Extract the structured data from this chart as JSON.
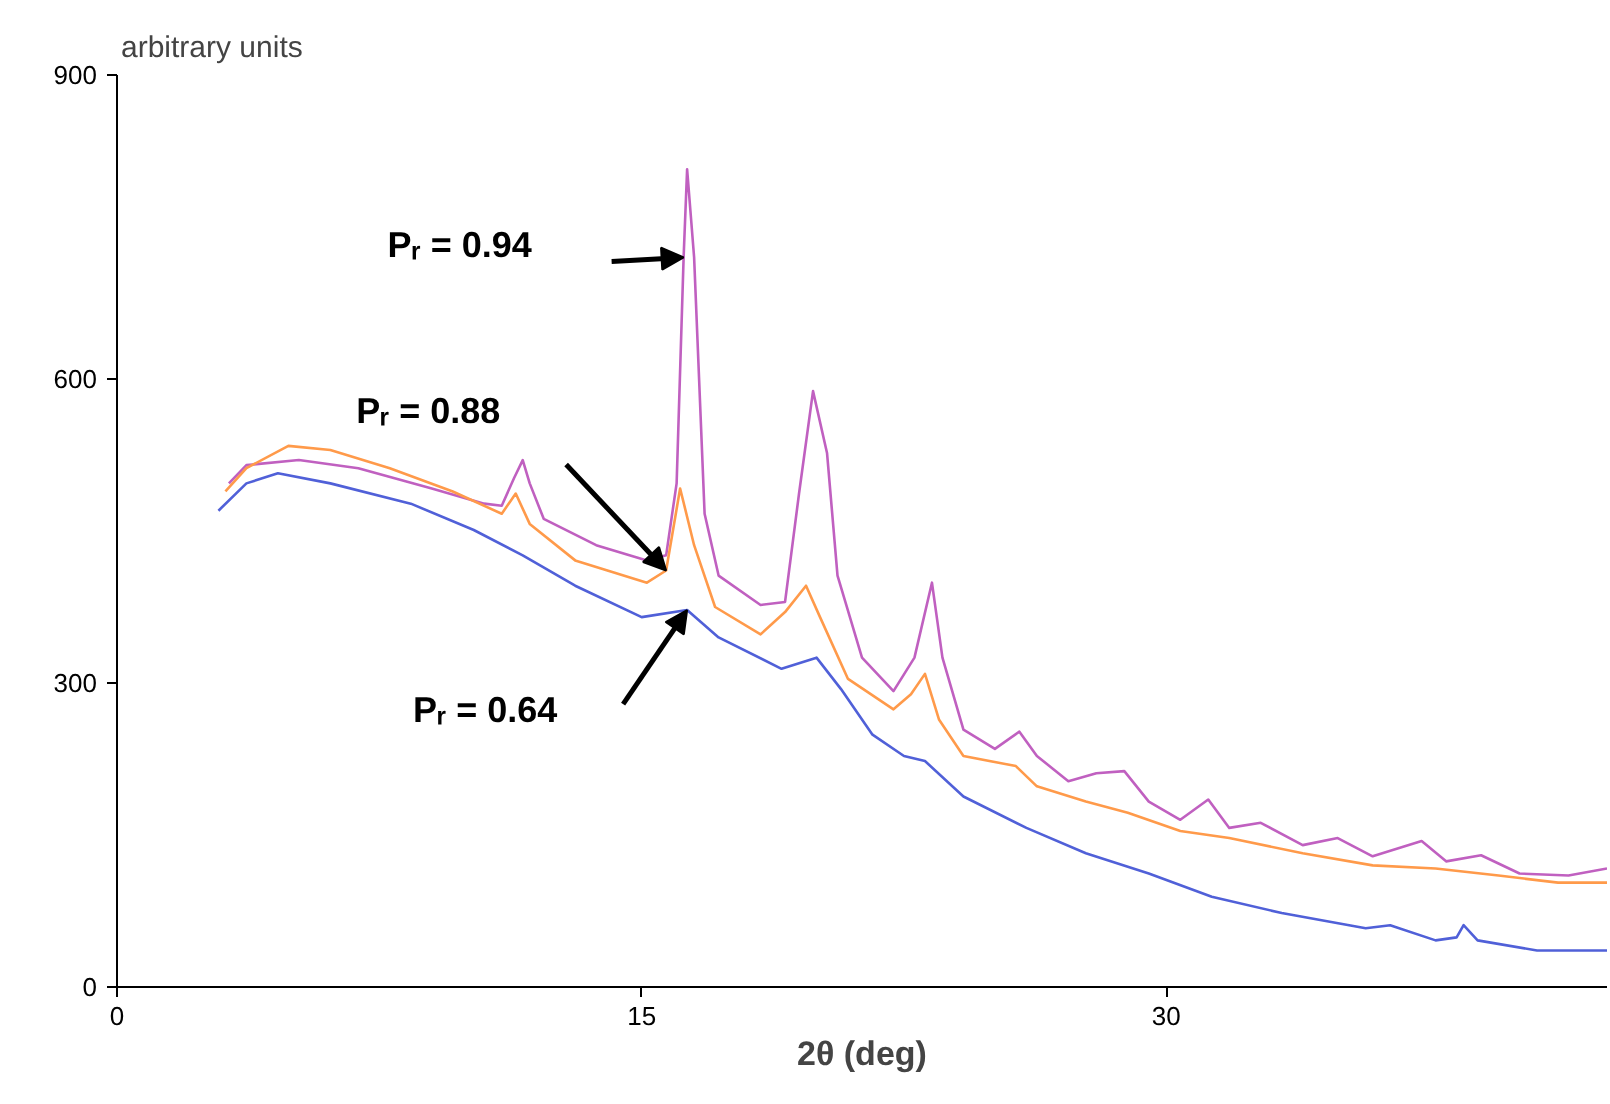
{
  "chart_data": {
    "type": "line",
    "ylabel": "arbitrary units",
    "xlabel": "2θ (deg)",
    "xlim": [
      0,
      42.6
    ],
    "ylim": [
      0,
      900
    ],
    "xticks": [
      0,
      15,
      30
    ],
    "yticks": [
      0,
      300,
      600,
      900
    ],
    "grid": false,
    "marker": "none",
    "line_style": "solid",
    "series": [
      {
        "color": "#c060c0",
        "x": [
          3.2,
          3.7,
          5.2,
          6.9,
          9.0,
          10.5,
          11.0,
          11.35,
          11.6,
          11.8,
          12.2,
          13.7,
          15.15,
          15.7,
          16.0,
          16.2,
          16.3,
          16.5,
          16.8,
          17.2,
          18.4,
          19.1,
          19.5,
          19.9,
          20.3,
          20.6,
          21.3,
          22.2,
          22.8,
          23.3,
          23.6,
          24.2,
          25.1,
          25.8,
          26.3,
          27.2,
          28.0,
          28.8,
          29.5,
          30.4,
          31.2,
          31.8,
          32.7,
          33.9,
          34.9,
          35.9,
          37.3,
          38.0,
          39.0,
          40.1,
          41.5,
          42.6
        ],
        "values": [
          497,
          515,
          520,
          512,
          492,
          477,
          475,
          502,
          520,
          497,
          462,
          436,
          421,
          426,
          497,
          720,
          807,
          720,
          467,
          406,
          377,
          380,
          487,
          588,
          527,
          406,
          325,
          292,
          325,
          399,
          325,
          254,
          235,
          252,
          228,
          203,
          211,
          213,
          183,
          165,
          185,
          157,
          162,
          140,
          147,
          129,
          144,
          124,
          130,
          112,
          110,
          117
        ]
      },
      {
        "color": "#ff9a4a",
        "x": [
          3.1,
          3.7,
          4.9,
          6.1,
          7.8,
          9.6,
          11.0,
          11.4,
          11.8,
          13.1,
          15.15,
          15.7,
          16.1,
          16.5,
          17.1,
          18.4,
          19.1,
          19.7,
          20.1,
          20.9,
          22.2,
          22.7,
          23.1,
          23.5,
          24.2,
          25.7,
          26.3,
          27.7,
          28.9,
          30.4,
          31.8,
          33.9,
          35.9,
          37.7,
          39.5,
          41.2,
          42.6
        ],
        "values": [
          489,
          512,
          534,
          530,
          512,
          489,
          467,
          487,
          457,
          421,
          399,
          411,
          492,
          436,
          375,
          348,
          370,
          396,
          365,
          304,
          274,
          289,
          309,
          264,
          228,
          218,
          198,
          183,
          172,
          154,
          147,
          132,
          120,
          117,
          110,
          103,
          103
        ]
      },
      {
        "color": "#5060d8",
        "x": [
          2.9,
          3.7,
          4.6,
          6.1,
          8.4,
          10.2,
          11.6,
          13.1,
          15.0,
          16.3,
          17.2,
          19.0,
          20.0,
          20.7,
          21.6,
          22.5,
          23.1,
          24.2,
          26.0,
          27.7,
          29.5,
          31.3,
          33.3,
          35.7,
          36.4,
          37.7,
          38.3,
          38.5,
          38.9,
          40.6,
          42.6
        ],
        "values": [
          470,
          497,
          507,
          497,
          477,
          451,
          426,
          396,
          365,
          372,
          345,
          314,
          325,
          294,
          249,
          228,
          223,
          188,
          157,
          132,
          112,
          89,
          73,
          58,
          61,
          46,
          49,
          61,
          46,
          36,
          36
        ]
      }
    ],
    "annotations": [
      "Pᵣ = 0.94",
      "Pᵣ = 0.88",
      "Pᵣ = 0.64"
    ]
  }
}
